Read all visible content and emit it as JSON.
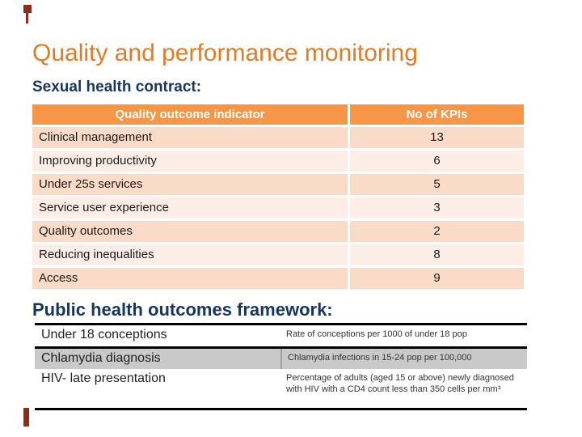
{
  "slide": {
    "title": "Quality and performance monitoring",
    "section1_heading": "Sexual health contract:",
    "section2_heading": "Public health outcomes framework:"
  },
  "kpi_table": {
    "headers": {
      "indicator": "Quality outcome indicator",
      "kpis": "No of KPIs"
    },
    "rows": [
      {
        "indicator": "Clinical management",
        "kpis": "13"
      },
      {
        "indicator": "Improving productivity",
        "kpis": "6"
      },
      {
        "indicator": "Under 25s services",
        "kpis": "5"
      },
      {
        "indicator": "Service user experience",
        "kpis": "3"
      },
      {
        "indicator": "Quality outcomes",
        "kpis": "2"
      },
      {
        "indicator": "Reducing inequalities",
        "kpis": "8"
      },
      {
        "indicator": "Access",
        "kpis": "9"
      }
    ]
  },
  "framework_table": {
    "rows": [
      {
        "measure": "Under 18 conceptions",
        "definition": "Rate of conceptions per 1000 of under 18 pop"
      },
      {
        "measure": "Chlamydia diagnosis",
        "definition": "Chlamydia infections in 15-24 pop per 100,000"
      },
      {
        "measure": "HIV- late presentation",
        "definition": "Percentage of adults (aged 15 or above) newly diagnosed with HIV with a CD4 count less than 350 cells per mm³"
      }
    ]
  },
  "colors": {
    "title_orange": "#dd7d2a",
    "heading_navy": "#17365d",
    "table_header_orange": "#f79646",
    "row_dark_pink": "#f9dbc8",
    "row_light_pink": "#fceee6",
    "gray_row": "#c9c9c9",
    "accent_red": "#8e2a19"
  }
}
